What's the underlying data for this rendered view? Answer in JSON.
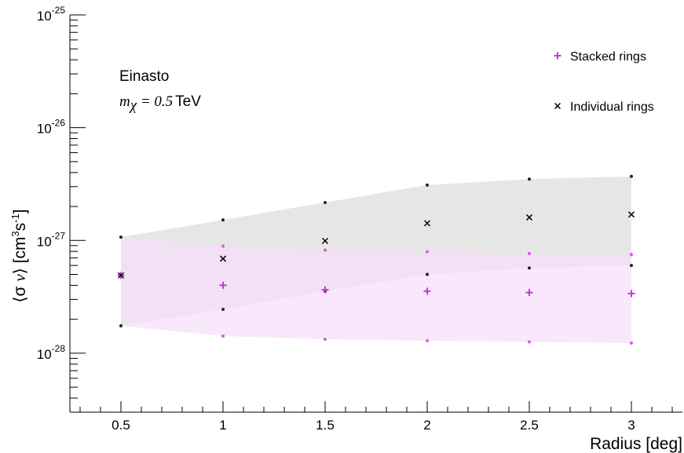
{
  "chart_data": {
    "type": "scatter",
    "xlabel": "Radius [deg]",
    "ylabel_parts": [
      "⟨σ ",
      "v",
      "⟩ [cm",
      "3",
      "s",
      "-1",
      "]"
    ],
    "x_ticks": [
      0.5,
      1,
      1.5,
      2,
      2.5,
      3
    ],
    "x_tick_labels": [
      "0.5",
      "1",
      "1.5",
      "2",
      "2.5",
      "3"
    ],
    "xlim": [
      0.25,
      3.25
    ],
    "ylim": [
      3e-29,
      1e-25
    ],
    "yscale": "log",
    "y_ticks": [
      {
        "base": "10",
        "exp": "-28"
      },
      {
        "base": "10",
        "exp": "-27"
      },
      {
        "base": "10",
        "exp": "-26"
      },
      {
        "base": "10",
        "exp": "-25"
      }
    ],
    "annotation": {
      "profile": "Einasto",
      "mass_symbol": "m",
      "mass_sub": "χ",
      "mass_eq": " = 0.5",
      "mass_unit": "TeV"
    },
    "legend_position": "top-right",
    "series": [
      {
        "name": "Stacked rings",
        "marker": "plus",
        "color": "#cc33dd",
        "band_color": "#f6ddf9",
        "x": [
          0.5,
          1,
          1.5,
          2,
          2.5,
          3
        ],
        "y": [
          4.9e-28,
          4e-28,
          3.65e-28,
          3.55e-28,
          3.45e-28,
          3.38e-28
        ],
        "upper": [
          1.07e-27,
          8.9e-28,
          8.2e-28,
          7.95e-28,
          7.65e-28,
          7.5e-28
        ],
        "lower": [
          1.75e-28,
          1.42e-28,
          1.33e-28,
          1.29e-28,
          1.26e-28,
          1.23e-28
        ]
      },
      {
        "name": "Individual rings",
        "marker": "cross",
        "color": "#000000",
        "band_color": "#e6e6e6",
        "x": [
          0.5,
          1,
          1.5,
          2,
          2.5,
          3
        ],
        "y": [
          4.9e-28,
          6.9e-28,
          9.9e-28,
          1.42e-27,
          1.6e-27,
          1.7e-27
        ],
        "upper": [
          1.07e-27,
          1.52e-27,
          2.17e-27,
          3.1e-27,
          3.5e-27,
          3.7e-27
        ],
        "lower": [
          1.75e-28,
          2.45e-28,
          3.55e-28,
          5e-28,
          5.7e-28,
          6e-28
        ]
      }
    ]
  }
}
